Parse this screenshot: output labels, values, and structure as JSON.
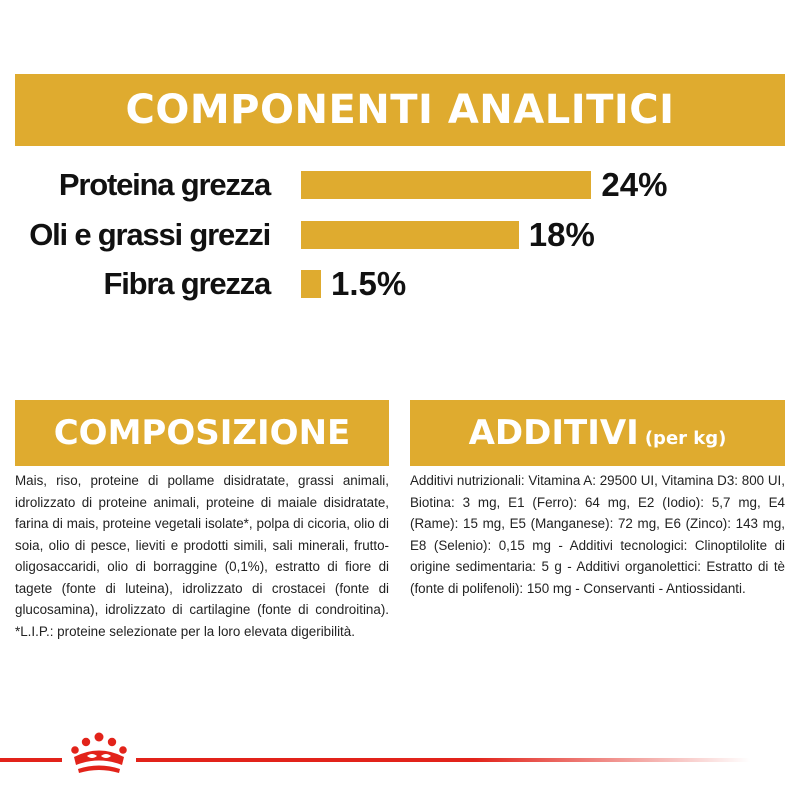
{
  "analitici": {
    "title": "COMPONENTI ANALITICI",
    "rows": [
      {
        "label": "Proteina grezza",
        "value": "24%",
        "percent": 24
      },
      {
        "label": "Oli e grassi grezzi",
        "value": "18%",
        "percent": 18
      },
      {
        "label": "Fibra grezza",
        "value": "1.5%",
        "percent": 1.5
      }
    ]
  },
  "composizione": {
    "title": "COMPOSIZIONE",
    "text": "Mais, riso, proteine di pollame disidratate, grassi animali, idrolizzato di proteine animali, proteine di maiale disidratate, farina di mais, proteine vegetali isolate*, polpa di cicoria, olio di soia, olio di pesce, lieviti e prodotti simili, sali minerali, frutto-oligosaccaridi, olio di borraggine (0,1%), estratto di fiore di tagete (fonte di luteina), idrolizzato di crostacei (fonte di glucosamina), idrolizzato di cartilagine (fonte di condroitina). *L.I.P.: proteine selezionate per la loro elevata digeribilità."
  },
  "additivi": {
    "title": "ADDITIVI",
    "subtitle": "(per kg)",
    "text": "Additivi nutrizionali: Vitamina A: 29500 UI, Vitamina D3: 800 UI, Biotina: 3 mg, E1 (Ferro): 64 mg, E2 (Iodio): 5,7 mg, E4 (Rame): 15 mg, E5 (Manganese): 72 mg, E6 (Zinco): 143 mg, E8 (Selenio): 0,15 mg - Additivi tecnologici: Clinoptilolite di origine sedimentaria: 5 g - Additivi organolettici: Estratto di tè (fonte di polifenoli): 150 mg - Conservanti - Antiossidanti."
  },
  "footer": {
    "logo_icon": "crown-logo-icon",
    "accent_color": "#e2231a"
  },
  "colors": {
    "banner": "#dfab2f",
    "text": "#111111"
  }
}
